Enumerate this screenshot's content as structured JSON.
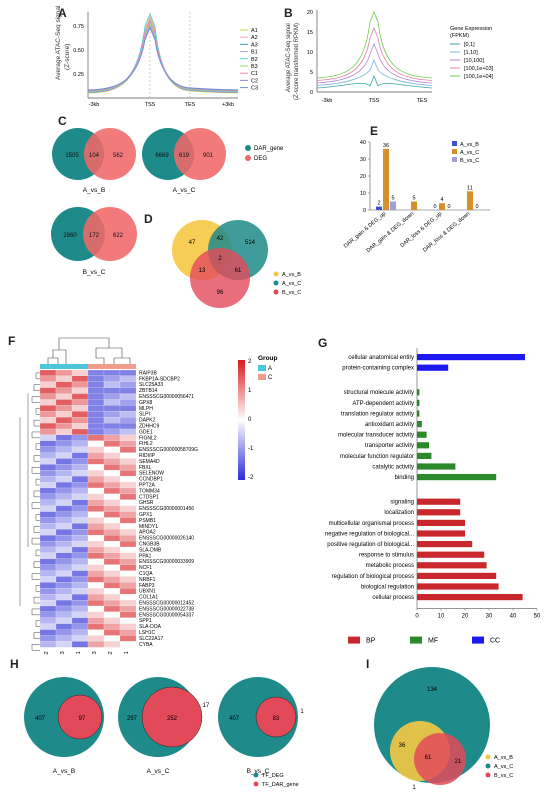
{
  "panels": {
    "A": {
      "label": "A",
      "ylabel": "Average ATAC-Seq signal",
      "ylabel2": "(Z-score)",
      "yticks": [
        "0.75",
        "0.50",
        "0.25"
      ],
      "xticks": [
        "-3kb",
        "TSS",
        "TES",
        "+3kb"
      ],
      "legend": [
        "A1",
        "A2",
        "A3",
        "B1",
        "B2",
        "B3",
        "C1",
        "C2",
        "C3"
      ],
      "colors": [
        "#c9d948",
        "#f2a6c7",
        "#3aa6a0",
        "#bb9fd9",
        "#4ad3d1",
        "#9ed86a",
        "#f48fb1",
        "#9b7fd4",
        "#6a8fd8"
      ]
    },
    "B": {
      "label": "B",
      "ylabel": "Average ATAC-Seq signal",
      "ylabel2": "(Z-score transformed RPKM)",
      "yticks": [
        "20",
        "15",
        "10",
        "5",
        "0"
      ],
      "xticks": [
        "-3kb",
        "TSS",
        "TES"
      ],
      "legend_title": "Gene Expression",
      "legend_title2": "(FPKM)",
      "legend": [
        "[0,1]",
        "[1,10]",
        "[10,100]",
        "[100,1e+03]",
        "[100,1e+04]"
      ],
      "colors": [
        "#3aa6a0",
        "#7ab5e0",
        "#b38ad0",
        "#e67fa8",
        "#6fcf4a"
      ]
    },
    "C": {
      "label": "C",
      "venns": [
        {
          "left": "1505",
          "mid": "104",
          "right": "562",
          "name": "A_vs_B"
        },
        {
          "left": "6669",
          "mid": "619",
          "right": "901",
          "name": "A_vs_C"
        },
        {
          "left": "2860",
          "mid": "172",
          "right": "622",
          "name": "B_vs_C"
        }
      ],
      "legend": [
        "DAR_gene",
        "DEG"
      ],
      "colors": {
        "teal": "#1e8a8a",
        "red": "#f06868"
      }
    },
    "D": {
      "label": "D",
      "values": [
        "47",
        "42",
        "514",
        "2",
        "13",
        "61",
        "96"
      ],
      "legend": [
        "A_vs_B",
        "A_vs_C",
        "B_vs_C"
      ],
      "colors": [
        "#f5c842",
        "#1e8a8a",
        "#e24a5a"
      ]
    },
    "E": {
      "label": "E",
      "legend": [
        "A_vs_B",
        "A_vs_C",
        "B_vs_C"
      ],
      "colors": [
        "#3b4fd8",
        "#d6902a",
        "#a89cd6"
      ]
    },
    "F": {
      "label": "F",
      "genes": [
        "RAIP3B",
        "FKBP1A-SDCBP2",
        "SLC25A33",
        "ZBTB14",
        "ENSSSCG00000056471",
        "GPX8",
        "MLPH",
        "SLPI",
        "DAPK2",
        "ZDHHC9",
        "GDE1",
        "FIGNL2",
        "FIHL2",
        "ENSSSCG00000058709G",
        "RIDI/IP",
        "SEMA4D",
        "FBXL",
        "SELENOW",
        "CCNDBP1",
        "PPT2A",
        "TOMM34",
        "CTDSP1",
        "GHSR",
        "ENSSSCG00000001456",
        "GPX1",
        "PSMB1",
        "MINDY1",
        "APOA2",
        "ENSSSCG00000026140",
        "CNGB3B",
        "SLA-DMB",
        "PPA1",
        "ENSSSCG00000033909",
        "NCF1",
        "C1QA",
        "NRBF1",
        "FABP3",
        "UBXN1",
        "COL1A1",
        "ENSSSCG00000012452",
        "ENSSSCG00000022738",
        "ENSSSCG00000054337",
        "SPP1",
        "SLA-DOA",
        "LSH1C",
        "SLC22A17",
        "CYBA"
      ],
      "samples": [
        "A-2",
        "A-3",
        "A-1",
        "C-3",
        "C-2",
        "C-1"
      ],
      "legend_title": "Group",
      "groups": [
        "A",
        "C"
      ],
      "scale": [
        "2",
        "1",
        "0",
        "-1",
        "-2"
      ],
      "colors": {
        "high": "#d7191c",
        "mid": "#ffffff",
        "low": "#2c2cd8",
        "groupA": "#4cc6d9",
        "groupC": "#f29c8c"
      }
    },
    "G": {
      "label": "G",
      "xticks": [
        "0",
        "10",
        "20",
        "30",
        "40",
        "50"
      ],
      "legend": [
        "BP",
        "MF",
        "CC"
      ],
      "colors": {
        "BP": "#c8282b",
        "MF": "#2a8a2a",
        "CC": "#1a1af0"
      }
    },
    "H": {
      "label": "H",
      "venns": [
        {
          "left": "407",
          "mid": "97",
          "name": "A_vs_B"
        },
        {
          "left": "297",
          "mid": "252",
          "outside": "17",
          "name": "A_vs_C"
        },
        {
          "left": "407",
          "mid": "83",
          "outside": "1",
          "name": "B_vs_C"
        }
      ],
      "legend": [
        "TF_DEG",
        "TF_DAR_gene"
      ]
    },
    "I": {
      "label": "I",
      "values": [
        "134",
        "36",
        "61",
        "21",
        "1"
      ],
      "legend": [
        "A_vs_B",
        "A_vs_C",
        "B_vs_C"
      ]
    }
  },
  "chart_data": [
    {
      "type": "bar",
      "categories": [
        "DAR_gain & DEG_up",
        "DAR_gain & DEG_down",
        "DAR_loss & DEG_up",
        "DAR_loss & DEG_down"
      ],
      "series": [
        {
          "name": "A_vs_B",
          "values": [
            2,
            0,
            0,
            0
          ]
        },
        {
          "name": "A_vs_C",
          "values": [
            36,
            5,
            4,
            11
          ]
        },
        {
          "name": "B_vs_C",
          "values": [
            5,
            0,
            0,
            0
          ]
        }
      ],
      "value_labels": [
        [
          "2",
          "36",
          "5"
        ],
        [
          "",
          "5",
          ""
        ],
        [
          "0",
          "4",
          "0"
        ],
        [
          "",
          "11",
          "0"
        ]
      ],
      "yticks": [
        "0",
        "10",
        "20",
        "30",
        "40"
      ],
      "ylim": [
        0,
        40
      ]
    },
    {
      "type": "bar",
      "orientation": "horizontal",
      "categories": [
        "cellular anatomical entity",
        "protein-containing complex",
        "structural molecule activity",
        "ATP-dependent activity",
        "translation regulator activity",
        "antioxidant activity",
        "molecular transducer activity",
        "transporter activity",
        "molecular function regulator",
        "catalytic activity",
        "binding",
        "signaling",
        "localization",
        "multicellular organismal process",
        "negative regulation of biological...",
        "positive regulation of biological...",
        "response to stimulus",
        "metabolic process",
        "regulation of biological process",
        "biological regulation",
        "cellular process"
      ],
      "groups": [
        "CC",
        "CC",
        "MF",
        "MF",
        "MF",
        "MF",
        "MF",
        "MF",
        "MF",
        "MF",
        "MF",
        "BP",
        "BP",
        "BP",
        "BP",
        "BP",
        "BP",
        "BP",
        "BP",
        "BP",
        "BP"
      ],
      "values": [
        45,
        13,
        1,
        1,
        1,
        2,
        4,
        5,
        6,
        16,
        33,
        18,
        18,
        20,
        20,
        23,
        28,
        29,
        33,
        34,
        44
      ],
      "xlim": [
        0,
        50
      ]
    }
  ]
}
